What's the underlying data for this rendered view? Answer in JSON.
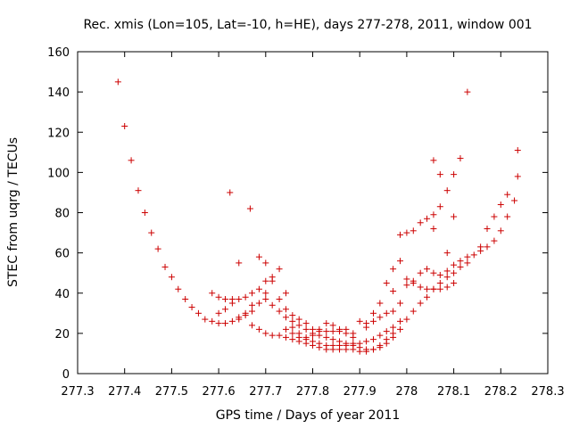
{
  "chart_data": {
    "type": "scatter",
    "title": "Rec. xmis (Lon=105, Lat=-10, h=HE), days 277-278, 2011, window 001",
    "xlabel": "GPS time / Days of year 2011",
    "ylabel": "STEC from uqrg / TECUs",
    "xlim": [
      277.3,
      278.3
    ],
    "ylim": [
      0,
      160
    ],
    "xticks": [
      277.3,
      277.4,
      277.5,
      277.6,
      277.7,
      277.8,
      277.9,
      278,
      278.1,
      278.2,
      278.3
    ],
    "xtick_labels": [
      "277.3",
      "277.4",
      "277.5",
      "277.6",
      "277.7",
      "277.8",
      "277.9",
      "278",
      "278.1",
      "278.2",
      "278.3"
    ],
    "yticks": [
      0,
      20,
      40,
      60,
      80,
      100,
      120,
      140,
      160
    ],
    "ytick_labels": [
      "0",
      "20",
      "40",
      "60",
      "80",
      "100",
      "120",
      "140",
      "160"
    ],
    "grid": false,
    "marker": "+",
    "colors": {
      "points": "#cc0000",
      "axes": "#000000"
    },
    "points": [
      [
        277.386,
        145
      ],
      [
        277.4,
        123
      ],
      [
        277.414,
        106
      ],
      [
        277.429,
        91
      ],
      [
        277.443,
        80
      ],
      [
        277.457,
        70
      ],
      [
        277.471,
        62
      ],
      [
        277.486,
        53
      ],
      [
        277.5,
        48
      ],
      [
        277.514,
        42
      ],
      [
        277.529,
        37
      ],
      [
        277.543,
        33
      ],
      [
        277.557,
        30
      ],
      [
        277.571,
        27
      ],
      [
        277.586,
        26
      ],
      [
        277.6,
        25
      ],
      [
        277.614,
        25
      ],
      [
        277.629,
        26
      ],
      [
        277.643,
        27
      ],
      [
        277.657,
        29
      ],
      [
        277.671,
        31
      ],
      [
        277.686,
        35
      ],
      [
        277.7,
        40
      ],
      [
        277.714,
        46
      ],
      [
        277.729,
        52
      ],
      [
        277.586,
        40
      ],
      [
        277.6,
        38
      ],
      [
        277.614,
        37
      ],
      [
        277.629,
        37
      ],
      [
        277.643,
        37
      ],
      [
        277.657,
        38
      ],
      [
        277.671,
        40
      ],
      [
        277.686,
        42
      ],
      [
        277.7,
        46
      ],
      [
        277.714,
        48
      ],
      [
        277.686,
        58
      ],
      [
        277.7,
        55
      ],
      [
        277.729,
        37
      ],
      [
        277.743,
        32
      ],
      [
        277.757,
        29
      ],
      [
        277.771,
        27
      ],
      [
        277.786,
        25
      ],
      [
        277.8,
        22
      ],
      [
        277.814,
        21
      ],
      [
        277.829,
        21
      ],
      [
        277.843,
        21
      ],
      [
        277.857,
        22
      ],
      [
        277.871,
        22
      ],
      [
        277.886,
        20
      ],
      [
        277.671,
        24
      ],
      [
        277.686,
        22
      ],
      [
        277.7,
        20
      ],
      [
        277.714,
        19
      ],
      [
        277.729,
        19
      ],
      [
        277.743,
        18
      ],
      [
        277.757,
        17
      ],
      [
        277.771,
        16
      ],
      [
        277.786,
        15
      ],
      [
        277.8,
        14
      ],
      [
        277.814,
        13
      ],
      [
        277.829,
        12
      ],
      [
        277.843,
        12
      ],
      [
        277.857,
        12
      ],
      [
        277.871,
        12
      ],
      [
        277.886,
        12
      ],
      [
        277.9,
        11
      ],
      [
        277.914,
        11
      ],
      [
        277.929,
        12
      ],
      [
        277.943,
        14
      ],
      [
        277.957,
        17
      ],
      [
        277.971,
        20
      ],
      [
        277.7,
        37
      ],
      [
        277.714,
        34
      ],
      [
        277.729,
        31
      ],
      [
        277.743,
        28
      ],
      [
        277.757,
        26
      ],
      [
        277.771,
        24
      ],
      [
        277.786,
        22
      ],
      [
        277.8,
        20
      ],
      [
        277.814,
        19
      ],
      [
        277.829,
        18
      ],
      [
        277.843,
        17
      ],
      [
        277.857,
        16
      ],
      [
        277.871,
        15
      ],
      [
        277.886,
        15
      ],
      [
        277.9,
        15
      ],
      [
        277.914,
        16
      ],
      [
        277.929,
        17
      ],
      [
        277.943,
        19
      ],
      [
        277.957,
        21
      ],
      [
        277.971,
        23
      ],
      [
        277.986,
        26
      ],
      [
        277.743,
        22
      ],
      [
        277.757,
        20
      ],
      [
        277.771,
        18
      ],
      [
        277.786,
        17
      ],
      [
        277.8,
        16
      ],
      [
        277.814,
        15
      ],
      [
        277.829,
        14
      ],
      [
        277.843,
        14
      ],
      [
        277.857,
        14
      ],
      [
        277.871,
        14
      ],
      [
        277.886,
        14
      ],
      [
        277.9,
        13
      ],
      [
        277.914,
        12
      ],
      [
        277.929,
        12
      ],
      [
        277.943,
        13
      ],
      [
        277.957,
        15
      ],
      [
        277.971,
        18
      ],
      [
        277.986,
        22
      ],
      [
        277.9,
        26
      ],
      [
        277.914,
        25
      ],
      [
        277.929,
        26
      ],
      [
        277.943,
        28
      ],
      [
        277.957,
        30
      ],
      [
        277.971,
        31
      ],
      [
        277.986,
        35
      ],
      [
        278.0,
        27
      ],
      [
        278.014,
        31
      ],
      [
        278.029,
        35
      ],
      [
        278.043,
        38
      ],
      [
        278.057,
        42
      ],
      [
        278.071,
        45
      ],
      [
        278.086,
        48
      ],
      [
        278.1,
        50
      ],
      [
        278.114,
        53
      ],
      [
        278.129,
        55
      ],
      [
        277.971,
        52
      ],
      [
        277.986,
        56
      ],
      [
        278.0,
        47
      ],
      [
        278.014,
        45
      ],
      [
        278.029,
        43
      ],
      [
        278.043,
        42
      ],
      [
        278.057,
        42
      ],
      [
        278.071,
        42
      ],
      [
        278.086,
        43
      ],
      [
        278.1,
        45
      ],
      [
        278.0,
        44
      ],
      [
        278.014,
        46
      ],
      [
        278.029,
        50
      ],
      [
        278.043,
        52
      ],
      [
        278.057,
        50
      ],
      [
        278.071,
        49
      ],
      [
        278.086,
        51
      ],
      [
        278.1,
        54
      ],
      [
        278.114,
        56
      ],
      [
        278.129,
        58
      ],
      [
        278.143,
        59
      ],
      [
        278.157,
        61
      ],
      [
        278.171,
        63
      ],
      [
        278.186,
        66
      ],
      [
        278.2,
        71
      ],
      [
        278.214,
        78
      ],
      [
        278.229,
        86
      ],
      [
        278.236,
        98
      ],
      [
        278.236,
        111
      ],
      [
        277.986,
        69
      ],
      [
        278.0,
        70
      ],
      [
        278.014,
        71
      ],
      [
        278.029,
        75
      ],
      [
        278.043,
        77
      ],
      [
        278.057,
        79
      ],
      [
        278.071,
        83
      ],
      [
        278.086,
        91
      ],
      [
        278.1,
        99
      ],
      [
        278.114,
        107
      ],
      [
        278.129,
        140
      ],
      [
        278.057,
        72
      ],
      [
        278.071,
        99
      ],
      [
        278.057,
        106
      ],
      [
        278.1,
        78
      ],
      [
        278.086,
        60
      ],
      [
        278.157,
        63
      ],
      [
        278.171,
        72
      ],
      [
        278.186,
        78
      ],
      [
        278.2,
        84
      ],
      [
        278.214,
        89
      ],
      [
        277.971,
        41
      ],
      [
        277.957,
        45
      ],
      [
        277.943,
        35
      ],
      [
        277.929,
        30
      ],
      [
        277.914,
        23
      ],
      [
        277.886,
        18
      ],
      [
        277.871,
        20
      ],
      [
        277.857,
        21
      ],
      [
        277.843,
        24
      ],
      [
        277.829,
        25
      ],
      [
        277.814,
        22
      ],
      [
        277.8,
        19
      ],
      [
        277.786,
        18
      ],
      [
        277.771,
        20
      ],
      [
        277.757,
        23
      ],
      [
        277.624,
        90
      ],
      [
        277.667,
        82
      ],
      [
        277.643,
        55
      ],
      [
        277.743,
        40
      ],
      [
        277.6,
        30
      ],
      [
        277.614,
        32
      ],
      [
        277.629,
        35
      ],
      [
        277.643,
        28
      ],
      [
        277.657,
        30
      ],
      [
        277.671,
        34
      ]
    ]
  }
}
